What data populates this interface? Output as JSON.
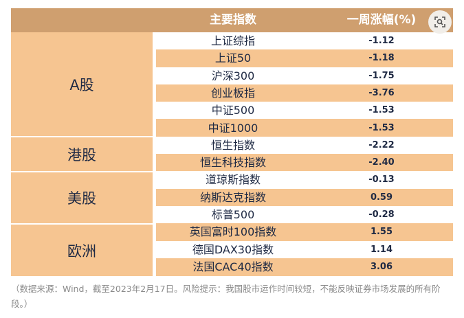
{
  "table": {
    "header": {
      "col_index": "主要指数",
      "col_change": "一周涨幅(%)"
    },
    "groups": [
      {
        "label": "A股",
        "rows": [
          {
            "name": "上证综指",
            "value": "-1.12"
          },
          {
            "name": "上证50",
            "value": "-1.18"
          },
          {
            "name": "沪深300",
            "value": "-1.75"
          },
          {
            "name": "创业板指",
            "value": "-3.76"
          },
          {
            "name": "中证500",
            "value": "-1.53"
          },
          {
            "name": "中证1000",
            "value": "-1.53"
          }
        ]
      },
      {
        "label": "港股",
        "rows": [
          {
            "name": "恒生指数",
            "value": "-2.22"
          },
          {
            "name": "恒生科技指数",
            "value": "-2.40"
          }
        ]
      },
      {
        "label": "美股",
        "rows": [
          {
            "name": "道琼斯指数",
            "value": "-0.13"
          },
          {
            "name": "纳斯达克指数",
            "value": "0.59"
          },
          {
            "name": "标普500",
            "value": "-0.28"
          }
        ]
      },
      {
        "label": "欧洲",
        "rows": [
          {
            "name": "英国富时100指数",
            "value": "1.55"
          },
          {
            "name": "德国DAX30指数",
            "value": "1.14"
          },
          {
            "name": "法国CAC40指数",
            "value": "3.06"
          }
        ]
      }
    ]
  },
  "footnote": "（数据来源：Wind，截至2023年2月17日。风险提示：我国股市运作时间较短，不能反映证券市场发展的所有阶段。）",
  "icons": {
    "image_search": "image-search-icon"
  },
  "colors": {
    "header": "#cf9f6f",
    "band": "#f6c591",
    "text": "#1f2a44"
  }
}
